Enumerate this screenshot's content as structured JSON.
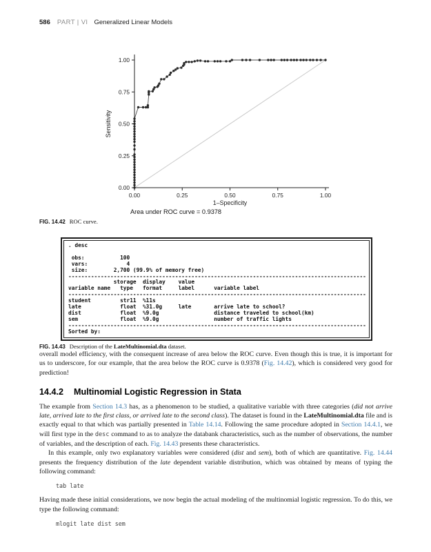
{
  "colors": {
    "link": "#3b78aa",
    "diagonal": "#c9c9c9",
    "dots": "#2a2a2a",
    "curve": "#4a4a4a",
    "axis": "#222222"
  },
  "header": {
    "page_number": "586",
    "part_label": "PART | VI",
    "part_title": "Generalized Linear Models"
  },
  "chart_data": {
    "type": "scatter",
    "title": "",
    "xlabel": "1–Specificity",
    "ylabel": "Sensitivity",
    "xlim": [
      0,
      1
    ],
    "ylim": [
      0,
      1
    ],
    "grid": false,
    "legend": "none",
    "annotation": "Area under ROC curve = 0.9378",
    "ticks": {
      "x": [
        "0.00",
        "0.25",
        "0.50",
        "0.75",
        "1.00"
      ],
      "y": [
        "0.00",
        "0.25",
        "0.50",
        "0.75",
        "1.00"
      ]
    },
    "reference_line": {
      "from": [
        0,
        0
      ],
      "to": [
        1,
        1
      ]
    },
    "series": [
      {
        "name": "ROC curve",
        "points": [
          [
            0,
            0
          ],
          [
            0,
            0.02
          ],
          [
            0,
            0.04
          ],
          [
            0,
            0.06
          ],
          [
            0,
            0.08
          ],
          [
            0,
            0.1
          ],
          [
            0,
            0.12
          ],
          [
            0,
            0.14
          ],
          [
            0,
            0.16
          ],
          [
            0,
            0.18
          ],
          [
            0,
            0.2
          ],
          [
            0,
            0.22
          ],
          [
            0,
            0.24
          ],
          [
            0,
            0.26
          ],
          [
            0,
            0.3
          ],
          [
            0,
            0.33
          ],
          [
            0,
            0.36
          ],
          [
            0,
            0.38
          ],
          [
            0,
            0.4
          ],
          [
            0,
            0.42
          ],
          [
            0,
            0.44
          ],
          [
            0,
            0.46
          ],
          [
            0,
            0.48
          ],
          [
            0,
            0.5
          ],
          [
            0,
            0.52
          ],
          [
            0,
            0.54
          ],
          [
            0.02,
            0.63
          ],
          [
            0.045,
            0.63
          ],
          [
            0.06,
            0.63
          ],
          [
            0.07,
            0.63
          ],
          [
            0.07,
            0.645
          ],
          [
            0.075,
            0.73
          ],
          [
            0.075,
            0.745
          ],
          [
            0.075,
            0.755
          ],
          [
            0.095,
            0.755
          ],
          [
            0.1,
            0.77
          ],
          [
            0.105,
            0.785
          ],
          [
            0.12,
            0.79
          ],
          [
            0.125,
            0.8
          ],
          [
            0.13,
            0.815
          ],
          [
            0.14,
            0.85
          ],
          [
            0.155,
            0.85
          ],
          [
            0.17,
            0.87
          ],
          [
            0.185,
            0.885
          ],
          [
            0.19,
            0.9
          ],
          [
            0.205,
            0.915
          ],
          [
            0.215,
            0.925
          ],
          [
            0.225,
            0.935
          ],
          [
            0.245,
            0.94
          ],
          [
            0.255,
            0.955
          ],
          [
            0.26,
            0.965
          ],
          [
            0.26,
            0.975
          ],
          [
            0.27,
            0.985
          ],
          [
            0.285,
            0.985
          ],
          [
            0.3,
            0.985
          ],
          [
            0.315,
            0.99
          ],
          [
            0.33,
            0.995
          ],
          [
            0.345,
            0.995
          ],
          [
            0.37,
            0.99
          ],
          [
            0.385,
            0.99
          ],
          [
            0.42,
            0.99
          ],
          [
            0.435,
            0.99
          ],
          [
            0.45,
            0.99
          ],
          [
            0.48,
            0.99
          ],
          [
            0.5,
            0.99
          ],
          [
            0.51,
            1.0
          ],
          [
            0.565,
            1.0
          ],
          [
            0.585,
            1.0
          ],
          [
            0.605,
            1.0
          ],
          [
            0.655,
            1.0
          ],
          [
            0.7,
            1.0
          ],
          [
            0.715,
            1.0
          ],
          [
            0.73,
            1.0
          ],
          [
            0.77,
            1.0
          ],
          [
            0.785,
            1.0
          ],
          [
            0.8,
            1.0
          ],
          [
            0.82,
            1.0
          ],
          [
            0.835,
            1.0
          ],
          [
            0.85,
            1.0
          ],
          [
            0.87,
            1.0
          ],
          [
            0.885,
            1.0
          ],
          [
            0.9,
            1.0
          ],
          [
            0.92,
            1.0
          ],
          [
            0.935,
            1.0
          ],
          [
            0.955,
            1.0
          ],
          [
            0.975,
            1.0
          ],
          [
            1.0,
            1.0
          ]
        ]
      }
    ]
  },
  "fig42": {
    "label": "FIG. 14.42",
    "text": "ROC curve."
  },
  "stata_output": {
    "lines": [
      ". desc",
      "",
      " obs:           100",
      " vars:            4",
      " size:        2,700 (99.9% of memory free)",
      "--------------------------------------------------------------------------------------------",
      "              storage  display    value",
      "variable name   type   format     label      variable label",
      "--------------------------------------------------------------------------------------------",
      "student         str11  %11s",
      "late            float  %31.0g     late       arrive late to school?",
      "dist            float  %9.0g                 distance traveled to school(km)",
      "sem             float  %9.0g                 number of traffic lights",
      "--------------------------------------------------------------------------------------------",
      "Sorted by:"
    ]
  },
  "fig43": {
    "label": "FIG. 14.43",
    "segments": [
      {
        "t": "Description of the ",
        "s": "p"
      },
      {
        "t": "LateMultinomial.dta",
        "s": "b"
      },
      {
        "t": " dataset.",
        "s": "p"
      }
    ]
  },
  "body": {
    "p1": [
      {
        "t": "overall model efficiency, with the consequent increase of area below the ROC curve. Even though this is true, it is important for us to underscore, for our example, that the area below the ROC curve is 0.9378 (",
        "s": "p"
      },
      {
        "t": "Fig. 14.42",
        "s": "l"
      },
      {
        "t": "), which is considered very good for prediction!",
        "s": "p"
      }
    ],
    "heading_number": "14.4.2",
    "heading_title": "Multinomial Logistic Regression in Stata",
    "p2": [
      {
        "t": "The example from ",
        "s": "p"
      },
      {
        "t": "Section 14.3",
        "s": "l"
      },
      {
        "t": " has, as a phenomenon to be studied, a qualitative variable with three categories (",
        "s": "p"
      },
      {
        "t": "did not arrive late, arrived late to the first class, or arrived late to the second class",
        "s": "i"
      },
      {
        "t": "). The dataset is found in the ",
        "s": "p"
      },
      {
        "t": "LateMultinomial.dta",
        "s": "b"
      },
      {
        "t": " file and is exactly equal to that which was partially presented in ",
        "s": "p"
      },
      {
        "t": "Table 14.14",
        "s": "l"
      },
      {
        "t": ". Following the same procedure adopted in ",
        "s": "p"
      },
      {
        "t": "Section 14.4.1",
        "s": "l"
      },
      {
        "t": ", we will first type in the ",
        "s": "p"
      },
      {
        "t": "desc",
        "s": "c"
      },
      {
        "t": " command to as to analyze the databank characteristics, such as the number of observations, the number of variables, and the description of each. ",
        "s": "p"
      },
      {
        "t": "Fig. 14.43",
        "s": "l"
      },
      {
        "t": " presents these characteristics.",
        "s": "p"
      }
    ],
    "p3": [
      {
        "t": "In this example, only two explanatory variables were considered (",
        "s": "p"
      },
      {
        "t": "dist",
        "s": "i"
      },
      {
        "t": " and ",
        "s": "p"
      },
      {
        "t": "sem",
        "s": "i"
      },
      {
        "t": "), both of which are quantitative. ",
        "s": "p"
      },
      {
        "t": "Fig. 14.44",
        "s": "l"
      },
      {
        "t": " presents the frequency distribution of the ",
        "s": "p"
      },
      {
        "t": "late",
        "s": "i"
      },
      {
        "t": " dependent variable distribution, which was obtained by means of typing the following command:",
        "s": "p"
      }
    ],
    "code1": "tab late",
    "p4": [
      {
        "t": "Having made these initial considerations, we now begin the actual modeling of the multinomial logistic regression. To do this, we type the following command:",
        "s": "p"
      }
    ],
    "code2": "mlogit late dist sem"
  }
}
